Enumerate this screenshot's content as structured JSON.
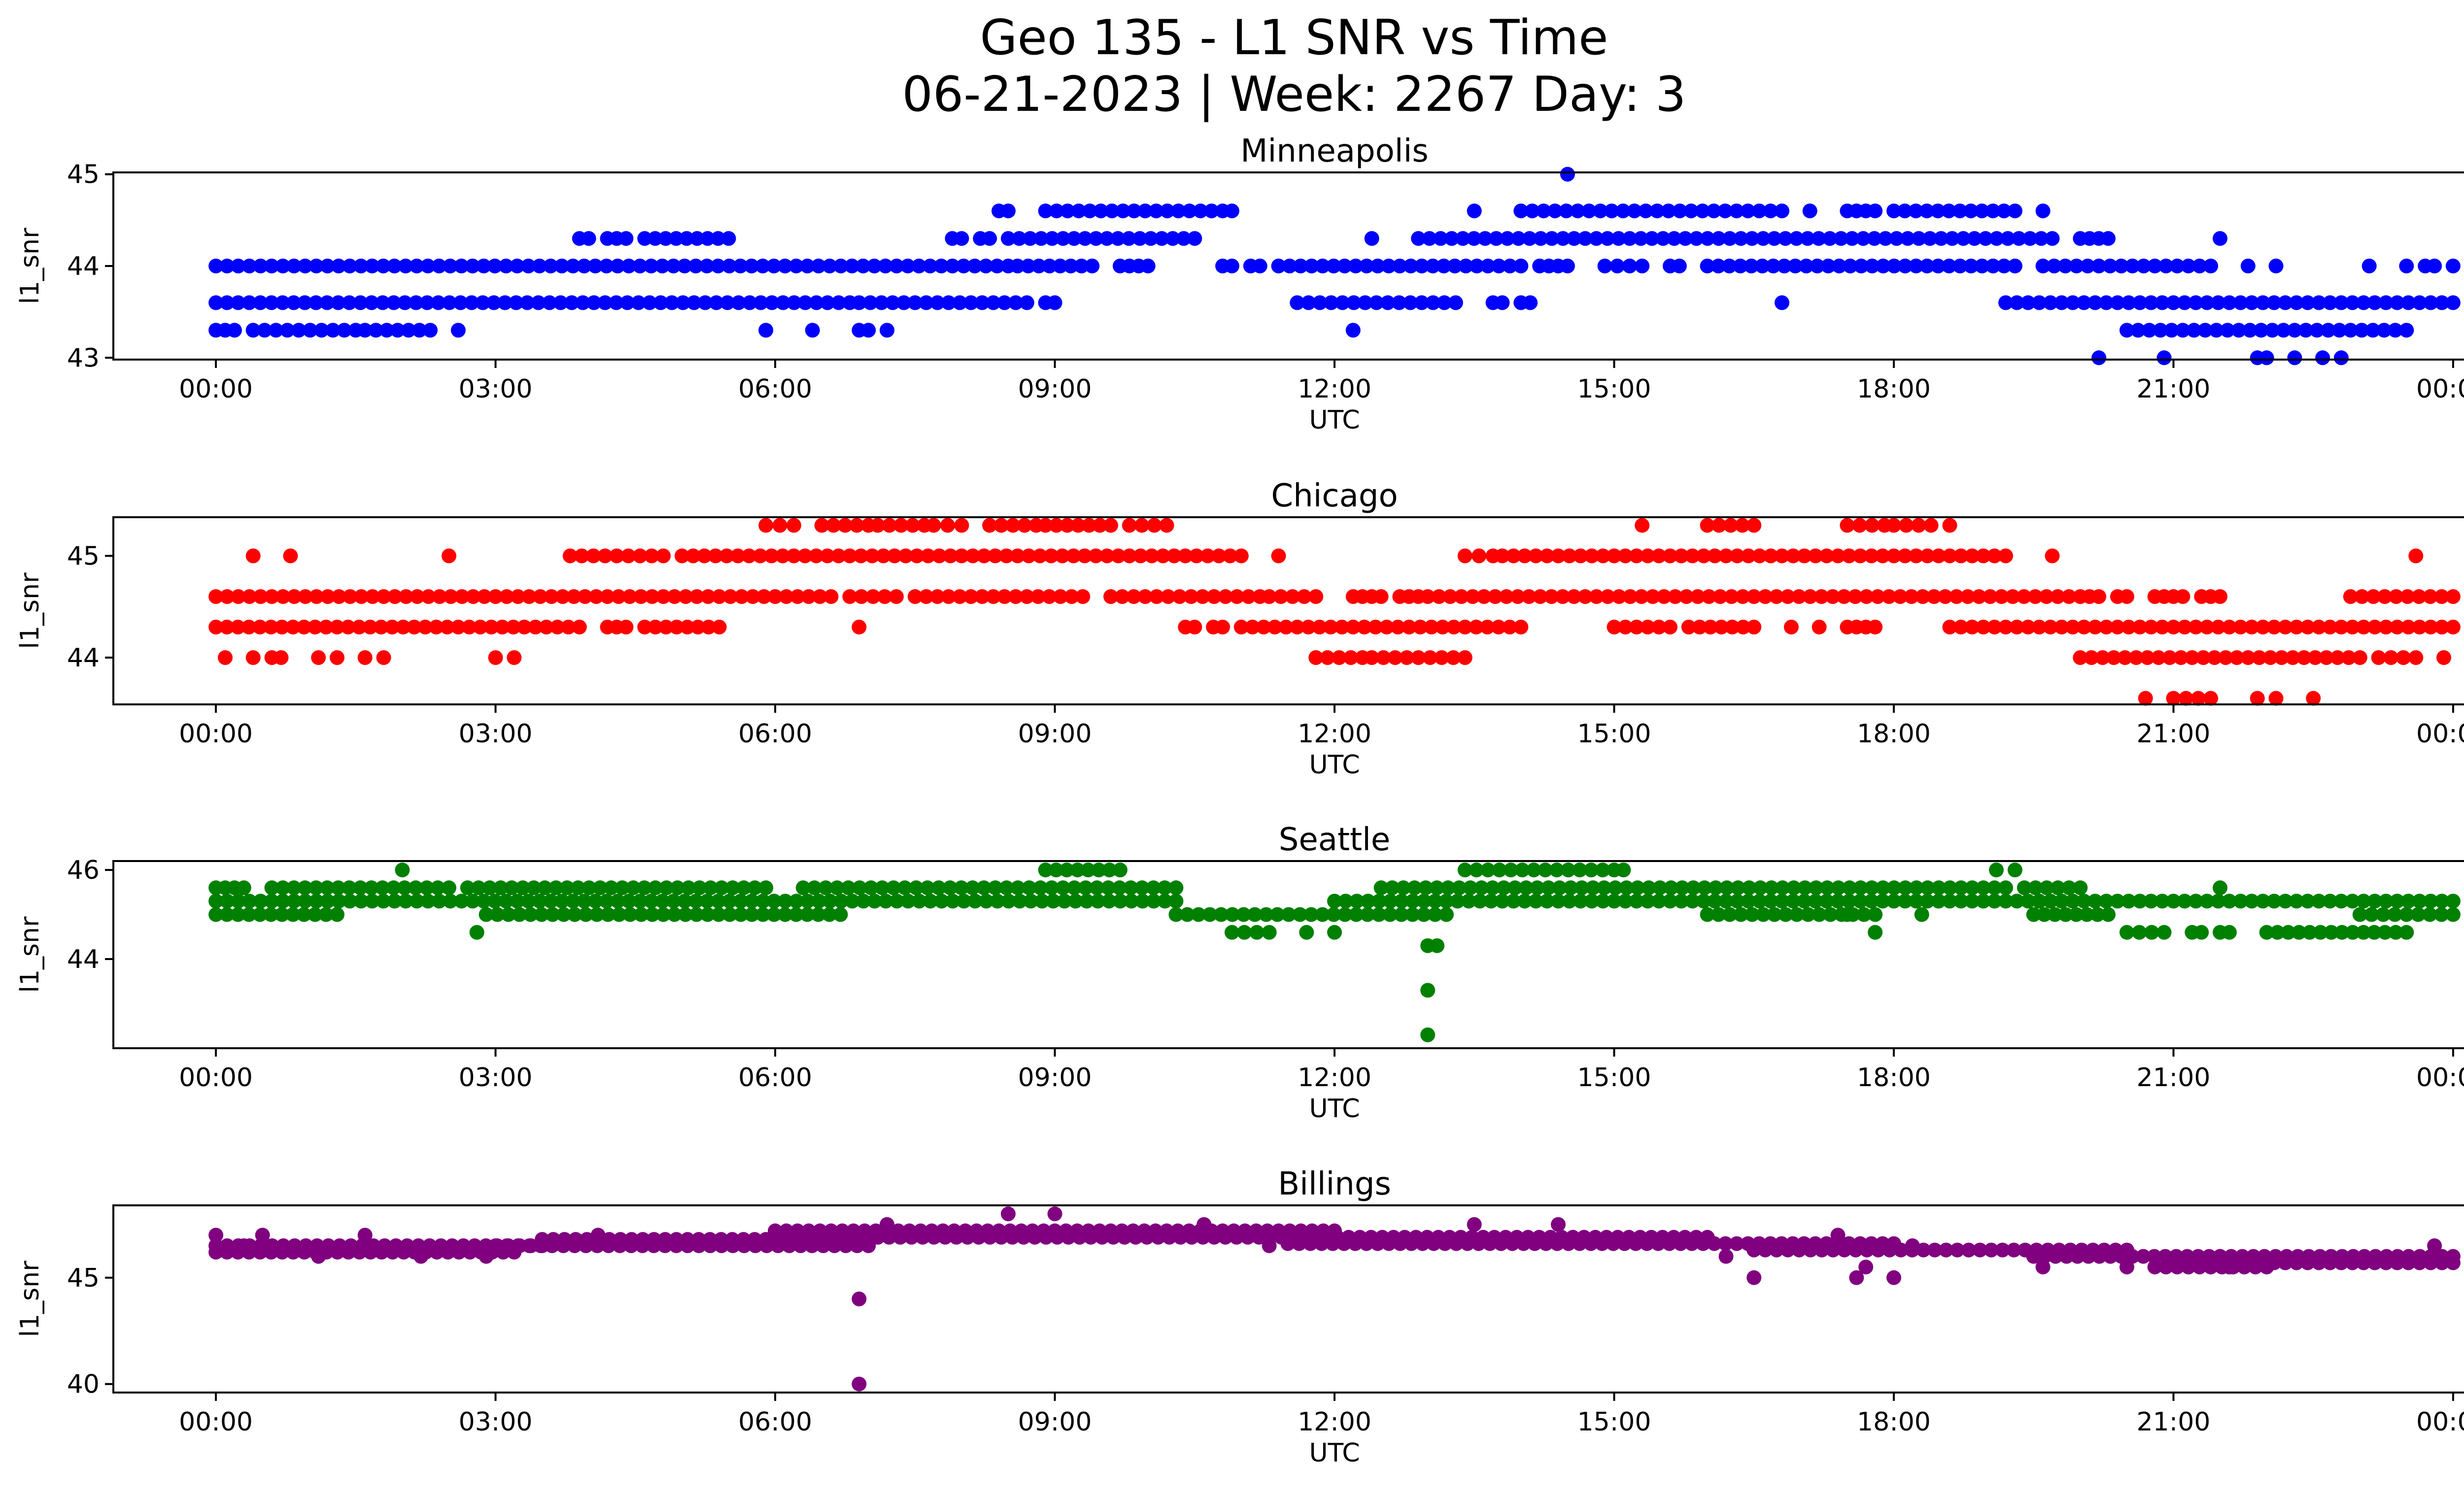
{
  "figure": {
    "title_line1": "Geo 135 - L1 SNR vs Time",
    "title_line2": "06-21-2023 | Week: 2267 Day: 3"
  },
  "chart_data": [
    {
      "type": "scatter",
      "title": "Minneapolis",
      "xlabel": "UTC",
      "ylabel": "l1_snr",
      "color": "#0000ff",
      "xlim_hours": [
        -1.1,
        25.1
      ],
      "ylim": [
        42.98,
        45.02
      ],
      "yticks": [
        43,
        44,
        45
      ],
      "xticks": [
        "00:00",
        "03:00",
        "06:00",
        "09:00",
        "12:00",
        "15:00",
        "18:00",
        "21:00",
        "00:00"
      ],
      "segments": [
        {
          "y": 44.0,
          "ranges": [
            [
              0.0,
              8.5
            ],
            [
              8.6,
              9.4
            ],
            [
              9.7,
              10.0
            ],
            [
              10.8,
              10.9
            ],
            [
              11.1,
              11.2
            ],
            [
              11.4,
              14.0
            ],
            [
              14.2,
              14.5
            ],
            [
              14.9,
              15.3
            ],
            [
              15.6,
              15.7
            ],
            [
              16.0,
              19.3
            ],
            [
              19.6,
              21.4
            ]
          ]
        },
        {
          "y": 43.6,
          "ranges": [
            [
              0.0,
              6.8
            ],
            [
              6.9,
              8.7
            ],
            [
              8.9,
              9.0
            ],
            [
              11.6,
              13.3
            ],
            [
              13.7,
              13.8
            ],
            [
              14.0,
              14.1
            ],
            [
              19.2,
              24.0
            ]
          ]
        },
        {
          "y": 43.3,
          "ranges": [
            [
              0.0,
              0.2
            ],
            [
              0.4,
              1.5
            ],
            [
              1.6,
              2.3
            ]
          ]
        },
        {
          "y": 44.3,
          "ranges": [
            [
              3.9,
              4.0
            ],
            [
              4.2,
              4.4
            ],
            [
              4.6,
              5.5
            ],
            [
              7.9,
              8.0
            ],
            [
              8.2,
              8.3
            ],
            [
              8.5,
              10.5
            ],
            [
              12.9,
              19.7
            ],
            [
              20.0,
              20.3
            ]
          ]
        },
        {
          "y": 44.6,
          "ranges": [
            [
              8.4,
              8.5
            ],
            [
              8.9,
              10.8
            ],
            [
              14.0,
              16.8
            ],
            [
              17.5,
              17.8
            ],
            [
              18.0,
              19.3
            ]
          ]
        },
        {
          "y": 43.3,
          "ranges": [
            [
              20.5,
              23.5
            ]
          ]
        }
      ],
      "points": [
        [
          2.6,
          43.3
        ],
        [
          5.9,
          43.3
        ],
        [
          6.4,
          43.3
        ],
        [
          6.9,
          43.3
        ],
        [
          7.0,
          43.3
        ],
        [
          7.2,
          43.3
        ],
        [
          10.9,
          44.6
        ],
        [
          12.2,
          43.3
        ],
        [
          12.4,
          44.3
        ],
        [
          13.5,
          44.6
        ],
        [
          14.5,
          45.0
        ],
        [
          16.8,
          43.6
        ],
        [
          17.1,
          44.6
        ],
        [
          19.6,
          44.6
        ],
        [
          20.2,
          43.0
        ],
        [
          21.5,
          44.3
        ],
        [
          20.9,
          43.0
        ],
        [
          21.8,
          44.0
        ],
        [
          21.9,
          43.0
        ],
        [
          22.0,
          43.0
        ],
        [
          22.1,
          44.0
        ],
        [
          22.3,
          43.0
        ],
        [
          22.6,
          43.0
        ],
        [
          22.8,
          43.0
        ],
        [
          23.1,
          44.0
        ],
        [
          23.5,
          44.0
        ],
        [
          23.7,
          44.0
        ],
        [
          23.8,
          44.0
        ],
        [
          24.0,
          44.0
        ]
      ]
    },
    {
      "type": "scatter",
      "title": "Chicago",
      "xlabel": "UTC",
      "ylabel": "l1_snr",
      "color": "#ff0000",
      "xlim_hours": [
        -1.1,
        25.1
      ],
      "ylim": [
        43.54,
        45.38
      ],
      "yticks": [
        44,
        45
      ],
      "xticks": [
        "00:00",
        "03:00",
        "06:00",
        "09:00",
        "12:00",
        "15:00",
        "18:00",
        "21:00",
        "00:00"
      ],
      "segments": [
        {
          "y": 44.3,
          "ranges": [
            [
              0.0,
              3.9
            ],
            [
              4.2,
              4.4
            ],
            [
              4.6,
              5.4
            ],
            [
              10.4,
              10.5
            ],
            [
              10.7,
              10.8
            ],
            [
              11.0,
              14.0
            ],
            [
              15.0,
              15.6
            ],
            [
              15.8,
              16.5
            ],
            [
              17.5,
              17.8
            ],
            [
              18.6,
              24.0
            ]
          ]
        },
        {
          "y": 44.6,
          "ranges": [
            [
              0.0,
              6.6
            ],
            [
              6.8,
              7.3
            ],
            [
              7.5,
              9.3
            ],
            [
              9.6,
              11.2
            ],
            [
              11.3,
              11.8
            ],
            [
              12.2,
              12.5
            ],
            [
              12.7,
              12.9
            ],
            [
              13.0,
              20.0
            ],
            [
              20.1,
              20.2
            ],
            [
              20.4,
              20.5
            ],
            [
              20.8,
              21.1
            ],
            [
              21.3,
              21.5
            ],
            [
              22.9,
              24.0
            ]
          ]
        },
        {
          "y": 44.0,
          "ranges": [
            [
              11.8,
              12.3
            ],
            [
              12.4,
              13.4
            ],
            [
              20.0,
              23.0
            ],
            [
              23.2,
              23.6
            ]
          ]
        },
        {
          "y": 45.0,
          "ranges": [
            [
              3.8,
              4.8
            ],
            [
              5.0,
              11.0
            ],
            [
              13.4,
              13.7
            ],
            [
              13.8,
              19.2
            ]
          ]
        },
        {
          "y": 45.3,
          "ranges": [
            [
              5.9,
              6.2
            ],
            [
              6.5,
              7.0
            ],
            [
              7.1,
              7.6
            ],
            [
              7.7,
              8.0
            ],
            [
              8.3,
              8.8
            ],
            [
              8.9,
              9.6
            ],
            [
              9.8,
              10.2
            ],
            [
              16.0,
              16.5
            ],
            [
              17.5,
              17.9
            ],
            [
              18.0,
              18.4
            ]
          ]
        },
        {
          "y": 43.6,
          "ranges": [
            [
              21.0,
              21.4
            ]
          ]
        }
      ],
      "points": [
        [
          0.1,
          44.0
        ],
        [
          0.4,
          45.0
        ],
        [
          0.4,
          44.0
        ],
        [
          0.6,
          44.0
        ],
        [
          0.7,
          44.0
        ],
        [
          0.8,
          45.0
        ],
        [
          1.1,
          44.0
        ],
        [
          1.3,
          44.0
        ],
        [
          1.6,
          44.0
        ],
        [
          1.8,
          44.0
        ],
        [
          2.5,
          45.0
        ],
        [
          3.0,
          44.0
        ],
        [
          3.2,
          44.0
        ],
        [
          6.9,
          44.3
        ],
        [
          11.4,
          45.0
        ],
        [
          15.3,
          45.3
        ],
        [
          16.9,
          44.3
        ],
        [
          17.2,
          44.3
        ],
        [
          18.6,
          45.3
        ],
        [
          19.7,
          45.0
        ],
        [
          20.7,
          43.6
        ],
        [
          21.9,
          43.6
        ],
        [
          22.1,
          43.6
        ],
        [
          22.5,
          43.6
        ],
        [
          23.6,
          45.0
        ],
        [
          23.9,
          44.0
        ]
      ]
    },
    {
      "type": "scatter",
      "title": "Seattle",
      "xlabel": "UTC",
      "ylabel": "l1_snr",
      "color": "#008000",
      "xlim_hours": [
        -1.1,
        25.1
      ],
      "ylim": [
        42.0,
        46.2
      ],
      "yticks": [
        44,
        46
      ],
      "xticks": [
        "00:00",
        "03:00",
        "06:00",
        "09:00",
        "12:00",
        "15:00",
        "18:00",
        "21:00",
        "00:00"
      ],
      "segments": [
        {
          "y": 45.6,
          "ranges": [
            [
              0.0,
              0.3
            ],
            [
              0.6,
              2.5
            ],
            [
              2.7,
              5.9
            ],
            [
              6.3,
              10.3
            ],
            [
              12.5,
              19.2
            ],
            [
              19.4,
              20.0
            ]
          ]
        },
        {
          "y": 45.3,
          "ranges": [
            [
              0.0,
              10.3
            ],
            [
              12.0,
              24.0
            ]
          ]
        },
        {
          "y": 45.0,
          "ranges": [
            [
              0.0,
              1.3
            ],
            [
              2.9,
              6.7
            ],
            [
              10.3,
              13.2
            ],
            [
              16.0,
              17.8
            ],
            [
              19.5,
              20.3
            ],
            [
              23.0,
              24.0
            ]
          ]
        },
        {
          "y": 46.0,
          "ranges": [
            [
              8.9,
              9.7
            ],
            [
              13.4,
              15.0
            ]
          ]
        },
        {
          "y": 44.6,
          "ranges": [
            [
              10.9,
              11.3
            ],
            [
              20.5,
              20.9
            ],
            [
              21.2,
              21.3
            ],
            [
              21.5,
              21.6
            ],
            [
              22.0,
              23.5
            ]
          ]
        }
      ],
      "points": [
        [
          2.0,
          46.0
        ],
        [
          2.8,
          44.6
        ],
        [
          11.7,
          44.6
        ],
        [
          12.0,
          44.6
        ],
        [
          13.0,
          44.3
        ],
        [
          13.1,
          44.3
        ],
        [
          13.0,
          43.3
        ],
        [
          13.0,
          42.3
        ],
        [
          15.1,
          46.0
        ],
        [
          17.5,
          45.0
        ],
        [
          17.8,
          44.6
        ],
        [
          18.3,
          45.0
        ],
        [
          19.1,
          46.0
        ],
        [
          19.3,
          46.0
        ],
        [
          21.5,
          45.6
        ]
      ]
    },
    {
      "type": "scatter",
      "title": "Billings",
      "xlabel": "UTC",
      "ylabel": "l1_snr",
      "color": "#800080",
      "xlim_hours": [
        -1.1,
        25.1
      ],
      "ylim": [
        39.6,
        48.4
      ],
      "yticks": [
        40,
        45
      ],
      "xticks": [
        "00:00",
        "03:00",
        "06:00",
        "09:00",
        "12:00",
        "15:00",
        "18:00",
        "21:00",
        "00:00"
      ],
      "segments": [
        {
          "y": 46.5,
          "ranges": [
            [
              0.0,
              3.5
            ]
          ]
        },
        {
          "y": 46.2,
          "ranges": [
            [
              0.0,
              3.2
            ]
          ]
        },
        {
          "y": 46.8,
          "ranges": [
            [
              3.5,
              6.5
            ]
          ]
        },
        {
          "y": 46.5,
          "ranges": [
            [
              3.0,
              7.0
            ]
          ]
        },
        {
          "y": 47.2,
          "ranges": [
            [
              6.0,
              12.0
            ]
          ]
        },
        {
          "y": 46.9,
          "ranges": [
            [
              6.5,
              16.0
            ]
          ]
        },
        {
          "y": 46.6,
          "ranges": [
            [
              11.5,
              18.0
            ]
          ]
        },
        {
          "y": 46.3,
          "ranges": [
            [
              16.5,
              20.5
            ]
          ]
        },
        {
          "y": 46.0,
          "ranges": [
            [
              19.5,
              21.5
            ]
          ]
        },
        {
          "y": 45.7,
          "ranges": [
            [
              21.0,
              24.0
            ]
          ]
        },
        {
          "y": 45.5,
          "ranges": [
            [
              20.8,
              22.0
            ]
          ]
        },
        {
          "y": 46.0,
          "ranges": [
            [
              21.5,
              24.0
            ]
          ]
        }
      ],
      "points": [
        [
          0.0,
          47.0
        ],
        [
          0.3,
          46.5
        ],
        [
          0.5,
          47.0
        ],
        [
          1.1,
          46.0
        ],
        [
          1.6,
          47.0
        ],
        [
          2.2,
          46.0
        ],
        [
          2.9,
          46.0
        ],
        [
          4.1,
          47.0
        ],
        [
          6.9,
          44.0
        ],
        [
          6.9,
          40.0
        ],
        [
          7.2,
          47.5
        ],
        [
          8.5,
          48.0
        ],
        [
          9.0,
          48.0
        ],
        [
          10.6,
          47.5
        ],
        [
          11.3,
          46.5
        ],
        [
          13.5,
          47.5
        ],
        [
          14.4,
          47.5
        ],
        [
          16.2,
          46.0
        ],
        [
          16.5,
          45.0
        ],
        [
          17.4,
          47.0
        ],
        [
          17.6,
          45.0
        ],
        [
          17.7,
          45.5
        ],
        [
          18.0,
          45.0
        ],
        [
          18.2,
          46.5
        ],
        [
          19.6,
          45.5
        ],
        [
          20.5,
          45.5
        ],
        [
          21.6,
          45.5
        ],
        [
          23.8,
          46.5
        ]
      ]
    }
  ]
}
